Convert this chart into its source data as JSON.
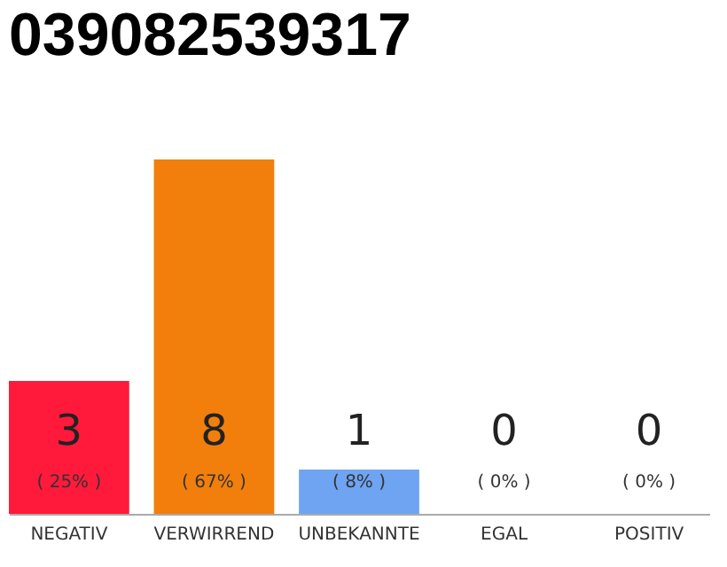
{
  "chart_data": {
    "type": "bar",
    "title": "039082539317",
    "categories": [
      "NEGATIV",
      "VERWIRREND",
      "UNBEKANNTE",
      "EGAL",
      "POSITIV"
    ],
    "values": [
      3,
      8,
      1,
      0,
      0
    ],
    "colors": [
      "#ff1a3c",
      "#f27f0c",
      "#6ea4f2",
      "#bbbbbb",
      "#bbbbbb"
    ],
    "value_labels": [
      "3",
      "8",
      "1",
      "0",
      "0"
    ],
    "annotations": [
      "( 25% )",
      "( 67% )",
      "( 8% )",
      "( 0% )",
      "( 0% )"
    ]
  }
}
